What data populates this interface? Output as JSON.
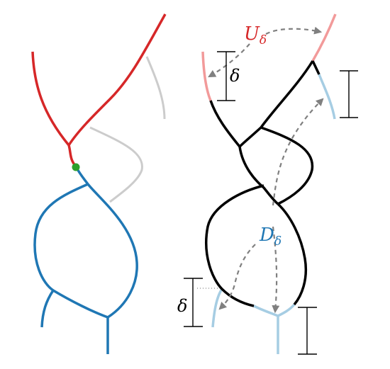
{
  "labels": {
    "upper": "U",
    "upper_sub": "δ",
    "lower": "D",
    "lower_sub": "δ",
    "delta_top": "δ",
    "delta_bottom": "δ"
  },
  "colors": {
    "red": "#d62728",
    "blue": "#1f77b4",
    "gray": "#cccccc",
    "black": "#000000",
    "light_red": "#f29a9a",
    "light_blue": "#a6cde3",
    "green": "#2ca02c",
    "arrow": "#808080"
  }
}
